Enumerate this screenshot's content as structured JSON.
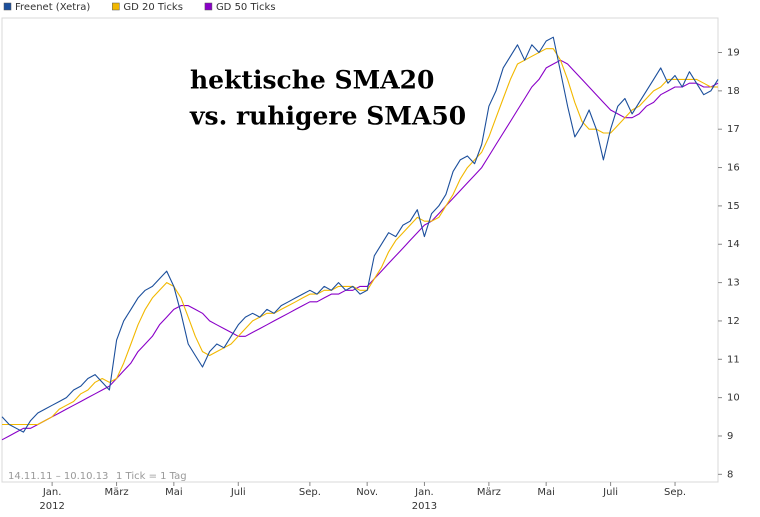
{
  "chart_data": {
    "type": "line",
    "annotation": [
      "hektische SMA20",
      "vs. ruhigere SMA50"
    ],
    "footer": [
      "14.11.11 – 10.10.13",
      "1 Tick = 1 Tag"
    ],
    "categories": [
      null,
      null,
      null,
      null,
      null,
      null,
      null,
      "Jan.",
      null,
      null,
      null,
      null,
      null,
      null,
      null,
      null,
      "März",
      null,
      null,
      null,
      null,
      null,
      null,
      null,
      "Mai",
      null,
      null,
      null,
      null,
      null,
      null,
      null,
      null,
      "Juli",
      null,
      null,
      null,
      null,
      null,
      null,
      null,
      null,
      null,
      "Sep.",
      null,
      null,
      null,
      null,
      null,
      null,
      null,
      "Nov.",
      null,
      null,
      null,
      null,
      null,
      null,
      null,
      "Jan.",
      null,
      null,
      null,
      null,
      null,
      null,
      null,
      null,
      "März",
      null,
      null,
      null,
      null,
      null,
      null,
      null,
      "Mai",
      null,
      null,
      null,
      null,
      null,
      null,
      null,
      null,
      "Juli",
      null,
      null,
      null,
      null,
      null,
      null,
      null,
      null,
      "Sep.",
      null,
      null,
      null,
      null,
      null,
      null
    ],
    "years": [
      null,
      null,
      null,
      null,
      null,
      null,
      null,
      "2012",
      null,
      null,
      null,
      null,
      null,
      null,
      null,
      null,
      null,
      null,
      null,
      null,
      null,
      null,
      null,
      null,
      null,
      null,
      null,
      null,
      null,
      null,
      null,
      null,
      null,
      null,
      null,
      null,
      null,
      null,
      null,
      null,
      null,
      null,
      null,
      null,
      null,
      null,
      null,
      null,
      null,
      null,
      null,
      null,
      null,
      null,
      null,
      null,
      null,
      null,
      null,
      "2013",
      null,
      null,
      null,
      null,
      null,
      null,
      null,
      null,
      null,
      null,
      null,
      null,
      null,
      null,
      null,
      null,
      null,
      null,
      null,
      null,
      null,
      null,
      null,
      null,
      null,
      null,
      null,
      null,
      null,
      null,
      null,
      null,
      null,
      null,
      null,
      null,
      null,
      null,
      null,
      null,
      null
    ],
    "series": [
      {
        "name": "Freenet (Xetra)",
        "color": "#1c4f9c",
        "values": [
          9.5,
          9.3,
          9.2,
          9.1,
          9.4,
          9.6,
          9.7,
          9.8,
          9.9,
          10.0,
          10.2,
          10.3,
          10.5,
          10.6,
          10.4,
          10.2,
          11.5,
          12.0,
          12.3,
          12.6,
          12.8,
          12.9,
          13.1,
          13.3,
          12.9,
          12.2,
          11.4,
          11.1,
          10.8,
          11.2,
          11.4,
          11.3,
          11.6,
          11.9,
          12.1,
          12.2,
          12.1,
          12.3,
          12.2,
          12.4,
          12.5,
          12.6,
          12.7,
          12.8,
          12.7,
          12.9,
          12.8,
          13.0,
          12.8,
          12.9,
          12.7,
          12.8,
          13.7,
          14.0,
          14.3,
          14.2,
          14.5,
          14.6,
          14.9,
          14.2,
          14.8,
          15.0,
          15.3,
          15.9,
          16.2,
          16.3,
          16.1,
          16.6,
          17.6,
          18.0,
          18.6,
          18.9,
          19.2,
          18.8,
          19.2,
          19.0,
          19.3,
          19.4,
          18.5,
          17.6,
          16.8,
          17.1,
          17.5,
          17.0,
          16.2,
          17.0,
          17.6,
          17.8,
          17.4,
          17.7,
          18.0,
          18.3,
          18.6,
          18.2,
          18.4,
          18.1,
          18.5,
          18.2,
          17.9,
          18.0,
          18.3
        ]
      },
      {
        "name": "GD 20 Ticks",
        "color": "#f2b800",
        "values": [
          9.3,
          9.3,
          9.3,
          9.3,
          9.3,
          9.3,
          9.4,
          9.5,
          9.7,
          9.8,
          9.9,
          10.1,
          10.2,
          10.4,
          10.5,
          10.4,
          10.5,
          10.9,
          11.4,
          11.9,
          12.3,
          12.6,
          12.8,
          13.0,
          12.9,
          12.6,
          12.1,
          11.6,
          11.2,
          11.1,
          11.2,
          11.3,
          11.4,
          11.6,
          11.8,
          12.0,
          12.1,
          12.2,
          12.2,
          12.3,
          12.4,
          12.5,
          12.6,
          12.7,
          12.7,
          12.8,
          12.8,
          12.9,
          12.9,
          12.9,
          12.8,
          12.8,
          13.1,
          13.4,
          13.8,
          14.1,
          14.3,
          14.5,
          14.7,
          14.6,
          14.6,
          14.7,
          15.0,
          15.3,
          15.7,
          16.0,
          16.2,
          16.4,
          16.8,
          17.3,
          17.8,
          18.3,
          18.7,
          18.8,
          18.9,
          19.0,
          19.1,
          19.1,
          18.8,
          18.3,
          17.7,
          17.2,
          17.0,
          17.0,
          16.9,
          16.9,
          17.1,
          17.3,
          17.5,
          17.6,
          17.8,
          18.0,
          18.1,
          18.3,
          18.3,
          18.3,
          18.3,
          18.3,
          18.2,
          18.1,
          18.1
        ]
      },
      {
        "name": "GD 50 Ticks",
        "color": "#8a00c8",
        "values": [
          8.9,
          9.0,
          9.1,
          9.2,
          9.2,
          9.3,
          9.4,
          9.5,
          9.6,
          9.7,
          9.8,
          9.9,
          10.0,
          10.1,
          10.2,
          10.3,
          10.5,
          10.7,
          10.9,
          11.2,
          11.4,
          11.6,
          11.9,
          12.1,
          12.3,
          12.4,
          12.4,
          12.3,
          12.2,
          12.0,
          11.9,
          11.8,
          11.7,
          11.6,
          11.6,
          11.7,
          11.8,
          11.9,
          12.0,
          12.1,
          12.2,
          12.3,
          12.4,
          12.5,
          12.5,
          12.6,
          12.7,
          12.7,
          12.8,
          12.8,
          12.9,
          12.9,
          13.1,
          13.3,
          13.5,
          13.7,
          13.9,
          14.1,
          14.3,
          14.5,
          14.6,
          14.8,
          15.0,
          15.2,
          15.4,
          15.6,
          15.8,
          16.0,
          16.3,
          16.6,
          16.9,
          17.2,
          17.5,
          17.8,
          18.1,
          18.3,
          18.6,
          18.7,
          18.8,
          18.7,
          18.5,
          18.3,
          18.1,
          17.9,
          17.7,
          17.5,
          17.4,
          17.3,
          17.3,
          17.4,
          17.6,
          17.7,
          17.9,
          18.0,
          18.1,
          18.1,
          18.2,
          18.2,
          18.1,
          18.1,
          18.2
        ]
      }
    ],
    "ylim": [
      7.8,
      19.9
    ],
    "yticks": [
      8,
      9,
      10,
      11,
      12,
      13,
      14,
      15,
      16,
      17,
      18,
      19
    ]
  }
}
